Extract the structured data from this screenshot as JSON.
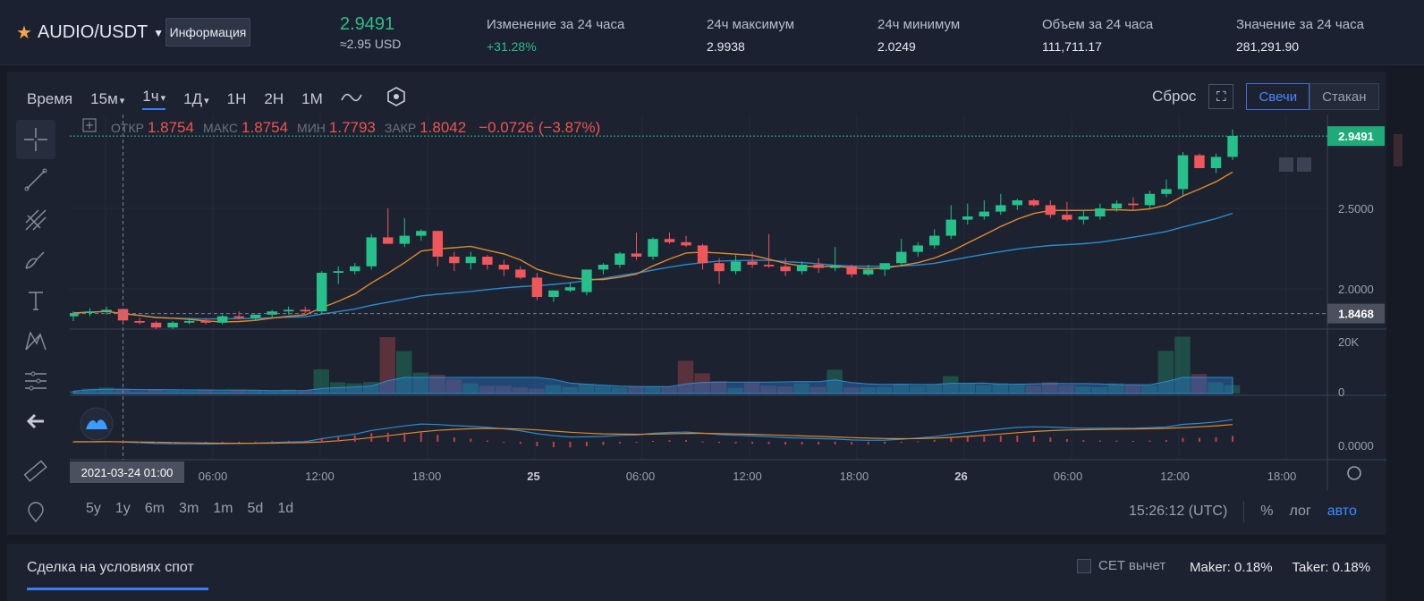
{
  "header": {
    "pair": "AUDIO/USDT",
    "info_button": "Информация",
    "last_price": "2.9491",
    "last_price_usd": "≈2.95 USD",
    "stats": [
      {
        "label": "Изменение за 24 часа",
        "value": "+31.28%"
      },
      {
        "label": "24ч максимум",
        "value": "2.9938"
      },
      {
        "label": "24ч минимум",
        "value": "2.0249"
      },
      {
        "label": "Объем за 24 часа",
        "value": "111,711.17"
      },
      {
        "label": "Значение за 24 часа",
        "value": "281,291.90"
      }
    ]
  },
  "toolbar": {
    "time_label": "Время",
    "tf_15m": "15м",
    "tf_1h": "1ч",
    "tf_1d": "1Д",
    "tf_1w": "1Н",
    "tf_2w": "2Н",
    "tf_1mo": "1М",
    "reset": "Сброс",
    "candles": "Свечи",
    "depth": "Стакан"
  },
  "ohlc": {
    "open_label": "ОТКР",
    "open": "1.8754",
    "high_label": "МАКС",
    "high": "1.8754",
    "low_label": "МИН",
    "low": "1.7793",
    "close_label": "ЗАКР",
    "close": "1.8042",
    "change": "−0.0726 (−3.87%)"
  },
  "chart_data": {
    "type": "candlestick",
    "price_ticks": [
      "2.5000",
      "2.0000"
    ],
    "price_tick_values": [
      2.5,
      2.0
    ],
    "last_price_label": "2.9491",
    "last_price_value": 2.9491,
    "crosshair_price_label": "1.8468",
    "crosshair_price_value": 1.8468,
    "volume_ticks": [
      "20K",
      "0"
    ],
    "volume_tick_values": [
      20000,
      0
    ],
    "macd_ticks": [
      "0.0000"
    ],
    "x_ticks": [
      "06:00",
      "12:00",
      "18:00",
      "25",
      "06:00",
      "12:00",
      "18:00",
      "26",
      "06:00",
      "12:00",
      "18:00"
    ],
    "crosshair_time_label": "2021-03-24  01:00",
    "ylim": [
      1.75,
      3.05
    ],
    "candles": [
      [
        1.83,
        1.86,
        1.8,
        1.85
      ],
      [
        1.85,
        1.88,
        1.83,
        1.86
      ],
      [
        1.86,
        1.89,
        1.84,
        1.87
      ],
      [
        1.875,
        1.875,
        1.779,
        1.804
      ],
      [
        1.8,
        1.82,
        1.78,
        1.79
      ],
      [
        1.79,
        1.8,
        1.75,
        1.76
      ],
      [
        1.76,
        1.8,
        1.75,
        1.79
      ],
      [
        1.79,
        1.82,
        1.78,
        1.8
      ],
      [
        1.8,
        1.82,
        1.78,
        1.79
      ],
      [
        1.79,
        1.84,
        1.78,
        1.83
      ],
      [
        1.83,
        1.86,
        1.81,
        1.82
      ],
      [
        1.82,
        1.84,
        1.8,
        1.84
      ],
      [
        1.84,
        1.87,
        1.82,
        1.86
      ],
      [
        1.86,
        1.89,
        1.84,
        1.87
      ],
      [
        1.87,
        1.89,
        1.85,
        1.86
      ],
      [
        1.86,
        2.11,
        1.85,
        2.1
      ],
      [
        2.1,
        2.14,
        2.03,
        2.11
      ],
      [
        2.11,
        2.16,
        2.09,
        2.14
      ],
      [
        2.14,
        2.34,
        2.12,
        2.32
      ],
      [
        2.32,
        2.5,
        2.28,
        2.28
      ],
      [
        2.28,
        2.44,
        2.26,
        2.33
      ],
      [
        2.33,
        2.37,
        2.3,
        2.36
      ],
      [
        2.36,
        2.36,
        2.14,
        2.2
      ],
      [
        2.2,
        2.23,
        2.11,
        2.16
      ],
      [
        2.16,
        2.23,
        2.12,
        2.2
      ],
      [
        2.2,
        2.21,
        2.12,
        2.15
      ],
      [
        2.15,
        2.18,
        2.08,
        2.12
      ],
      [
        2.12,
        2.14,
        2.06,
        2.07
      ],
      [
        2.07,
        2.1,
        1.93,
        1.95
      ],
      [
        1.95,
        1.99,
        1.92,
        1.99
      ],
      [
        1.99,
        2.04,
        1.98,
        2.01
      ],
      [
        1.98,
        2.11,
        1.96,
        2.12
      ],
      [
        2.12,
        2.16,
        2.09,
        2.15
      ],
      [
        2.15,
        2.23,
        2.13,
        2.22
      ],
      [
        2.22,
        2.35,
        2.18,
        2.2
      ],
      [
        2.2,
        2.32,
        2.18,
        2.31
      ],
      [
        2.31,
        2.35,
        2.28,
        2.29
      ],
      [
        2.29,
        2.33,
        2.26,
        2.27
      ],
      [
        2.27,
        2.28,
        2.12,
        2.16
      ],
      [
        2.16,
        2.19,
        2.03,
        2.11
      ],
      [
        2.11,
        2.21,
        2.09,
        2.17
      ],
      [
        2.17,
        2.23,
        2.13,
        2.15
      ],
      [
        2.15,
        2.34,
        2.13,
        2.14
      ],
      [
        2.14,
        2.19,
        2.08,
        2.11
      ],
      [
        2.11,
        2.17,
        2.09,
        2.15
      ],
      [
        2.15,
        2.19,
        2.1,
        2.13
      ],
      [
        2.13,
        2.26,
        2.11,
        2.14
      ],
      [
        2.14,
        2.15,
        2.07,
        2.09
      ],
      [
        2.09,
        2.15,
        2.08,
        2.12
      ],
      [
        2.12,
        2.15,
        2.08,
        2.16
      ],
      [
        2.16,
        2.31,
        2.14,
        2.23
      ],
      [
        2.23,
        2.29,
        2.2,
        2.27
      ],
      [
        2.27,
        2.37,
        2.25,
        2.33
      ],
      [
        2.33,
        2.52,
        2.31,
        2.43
      ],
      [
        2.43,
        2.53,
        2.4,
        2.45
      ],
      [
        2.45,
        2.55,
        2.43,
        2.48
      ],
      [
        2.48,
        2.59,
        2.46,
        2.52
      ],
      [
        2.52,
        2.56,
        2.49,
        2.55
      ],
      [
        2.55,
        2.56,
        2.51,
        2.52
      ],
      [
        2.52,
        2.55,
        2.44,
        2.46
      ],
      [
        2.46,
        2.54,
        2.42,
        2.43
      ],
      [
        2.43,
        2.49,
        2.4,
        2.45
      ],
      [
        2.45,
        2.53,
        2.43,
        2.5
      ],
      [
        2.5,
        2.55,
        2.48,
        2.53
      ],
      [
        2.53,
        2.57,
        2.49,
        2.52
      ],
      [
        2.52,
        2.61,
        2.5,
        2.59
      ],
      [
        2.59,
        2.68,
        2.57,
        2.62
      ],
      [
        2.62,
        2.85,
        2.58,
        2.83
      ],
      [
        2.83,
        2.84,
        2.75,
        2.75
      ],
      [
        2.75,
        2.84,
        2.72,
        2.82
      ],
      [
        2.82,
        2.99,
        2.8,
        2.95
      ]
    ],
    "volume": [
      900,
      1800,
      2200,
      1600,
      800,
      1400,
      1100,
      900,
      1200,
      800,
      1300,
      1000,
      900,
      1500,
      1100,
      9000,
      4200,
      3800,
      4300,
      21000,
      15800,
      7800,
      7000,
      5200,
      3800,
      2800,
      2800,
      2200,
      1800,
      3200,
      2400,
      3600,
      2800,
      2200,
      2400,
      2600,
      2400,
      12200,
      7500,
      4600,
      2100,
      3900,
      2900,
      2600,
      3800,
      2400,
      8900,
      2200,
      2300,
      2400,
      3500,
      2800,
      3200,
      6500,
      3900,
      3200,
      3900,
      3400,
      2900,
      4200,
      3100,
      2600,
      2400,
      3800,
      3400,
      3000,
      15900,
      21200,
      7300,
      4200,
      3100
    ]
  }
}
